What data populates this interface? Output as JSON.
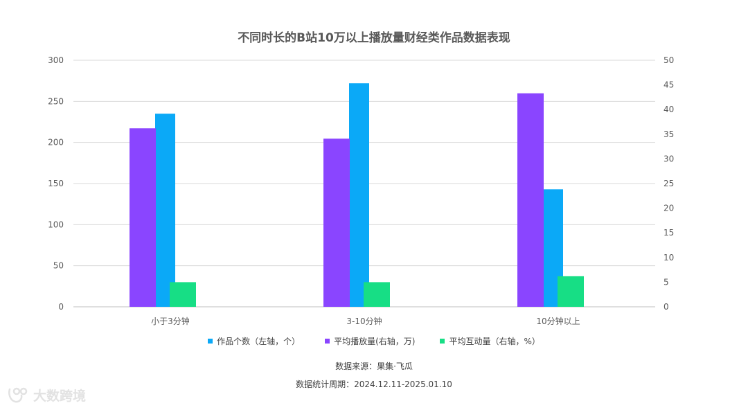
{
  "chart_data": {
    "type": "bar",
    "title": "不同时长的B站10万以上播放量财经类作品数据表现",
    "categories": [
      "小于3分钟",
      "3-10分钟",
      "10分钟以上"
    ],
    "y_left": {
      "ylim": [
        0,
        300
      ],
      "ticks": [
        "0",
        "50",
        "100",
        "150",
        "200",
        "250",
        "300"
      ]
    },
    "y_right": {
      "ylim": [
        0,
        50
      ],
      "ticks": [
        "0",
        "5",
        "10",
        "15",
        "20",
        "25",
        "30",
        "35",
        "40",
        "45",
        "50"
      ]
    },
    "grid": true,
    "legend_position": "bottom",
    "series": [
      {
        "name": "平均播放量(右轴，万)",
        "axis": "right",
        "color": "#8A45FF",
        "values": [
          36.2,
          34.1,
          43.3
        ]
      },
      {
        "name": "作品个数（左轴，个）",
        "axis": "left",
        "color": "#0BA9F7",
        "values": [
          235,
          272,
          143
        ]
      },
      {
        "name": "平均互动量（右轴，%）",
        "axis": "right",
        "color": "#17DE85",
        "values": [
          5.0,
          5.0,
          6.2
        ]
      }
    ],
    "legend_order": [
      1,
      0,
      2
    ]
  },
  "notes": {
    "source": "数据来源：果集·飞瓜",
    "period": "数据统计周期：2024.12.11-2025.01.10"
  },
  "watermark": {
    "text": "大数跨境"
  }
}
